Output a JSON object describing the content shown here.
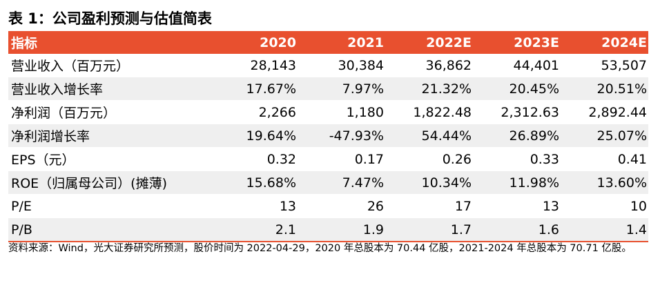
{
  "title": "表 1：公司盈利预测与估值简表",
  "table": {
    "headers": [
      "指标",
      "2020",
      "2021",
      "2022E",
      "2023E",
      "2024E"
    ],
    "rows": [
      {
        "label": "营业收入（百万元）",
        "values": [
          "28,143",
          "30,384",
          "36,862",
          "44,401",
          "53,507"
        ]
      },
      {
        "label": "营业收入增长率",
        "values": [
          "17.67%",
          "7.97%",
          "21.32%",
          "20.45%",
          "20.51%"
        ]
      },
      {
        "label": "净利润（百万元）",
        "values": [
          "2,266",
          "1,180",
          "1,822.48",
          "2,312.63",
          "2,892.44"
        ]
      },
      {
        "label": "净利润增长率",
        "values": [
          "19.64%",
          "-47.93%",
          "54.44%",
          "26.89%",
          "25.07%"
        ]
      },
      {
        "label": "EPS（元）",
        "values": [
          "0.32",
          "0.17",
          "0.26",
          "0.33",
          "0.41"
        ]
      },
      {
        "label": "ROE（归属母公司）(摊薄)",
        "values": [
          "15.68%",
          "7.47%",
          "10.34%",
          "11.98%",
          "13.60%"
        ]
      },
      {
        "label": "P/E",
        "values": [
          "13",
          "26",
          "17",
          "13",
          "10"
        ]
      },
      {
        "label": "P/B",
        "values": [
          "2.1",
          "1.9",
          "1.7",
          "1.6",
          "1.4"
        ]
      }
    ]
  },
  "note": "资料来源：Wind，光大证券研究所预测，股价时间为 2022-04-29，2020 年总股本为 70.44 亿股，2021-2024 年总股本为 70.71 亿股。",
  "colors": {
    "header_bg": "#e8502f",
    "header_text": "#ffffff",
    "shaded_row": "#efefef"
  }
}
